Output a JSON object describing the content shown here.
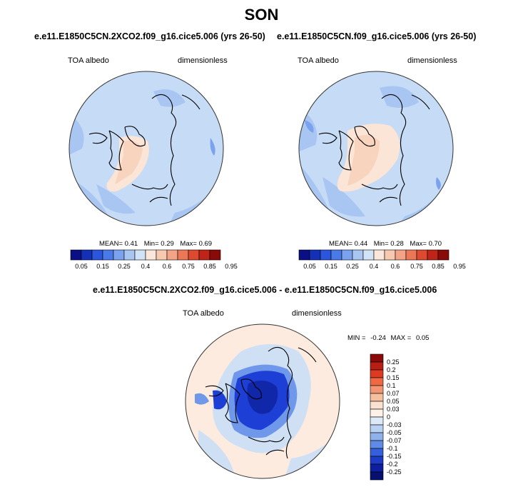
{
  "page": {
    "season": "SON"
  },
  "panels": [
    {
      "title": "e.e11.E1850C5CN.2XCO2.f09_g16.cice5.006 (yrs 26-50)",
      "left_label": "TOA albedo",
      "right_label": "dimensionless",
      "stats": {
        "mean_label": "MEAN=",
        "mean": "0.41",
        "min_label": "Min=",
        "min": "0.29",
        "max_label": "Max=",
        "max": "0.69"
      }
    },
    {
      "title": "e.e11.E1850C5CN.f09_g16.cice5.006 (yrs 26-50)",
      "left_label": "TOA albedo",
      "right_label": "dimensionless",
      "stats": {
        "mean_label": "MEAN=",
        "mean": "0.44",
        "min_label": "Min=",
        "min": "0.28",
        "max_label": "Max=",
        "max": "0.70"
      }
    }
  ],
  "abs_colorbar": {
    "colors": [
      "#0a0f85",
      "#1530b8",
      "#2a55dc",
      "#4a7ae8",
      "#7aa2ee",
      "#a9c6f3",
      "#d2e3f7",
      "#fae6da",
      "#f8c9b1",
      "#f3a486",
      "#ec7756",
      "#dd4a30",
      "#bf2418",
      "#8a0a0a"
    ],
    "labels": [
      "0.05",
      "0.15",
      "0.25",
      "0.4",
      "0.6",
      "0.75",
      "0.85",
      "0.95"
    ]
  },
  "diff_panel": {
    "title": "e.e11.E1850C5CN.2XCO2.f09_g16.cice5.006 - e.e11.E1850C5CN.f09_g16.cice5.006",
    "left_label": "TOA albedo",
    "right_label": "dimensionless",
    "minmax": {
      "min_label": "MIN =",
      "min": "-0.24",
      "max_label": "MAX =",
      "max": "0.05"
    }
  },
  "diff_colorbar": {
    "colors": [
      "#8a0a0a",
      "#b81e14",
      "#dc3a22",
      "#ef6a44",
      "#f39572",
      "#f6bf9e",
      "#fbe2d0",
      "#fdf1e8",
      "#dde9f7",
      "#b8d0f1",
      "#8fb2ec",
      "#5f8ae6",
      "#3460dc",
      "#1d3bc4",
      "#0d1f9e",
      "#06106e"
    ],
    "labels": [
      "0.25",
      "0.2",
      "0.15",
      "0.1",
      "0.07",
      "0.05",
      "0.03",
      "0",
      "-0.03",
      "-0.05",
      "-0.07",
      "-0.1",
      "-0.15",
      "-0.2",
      "-0.25"
    ]
  },
  "map_colors": {
    "ocean_base": "#c6dbf5",
    "ocean_mid": "#a9c6f3",
    "ocean_dark": "#7aa2ee",
    "arctic_warm": "#fbe5d6",
    "arctic_warm2": "#f8d3bd",
    "diff_base": "#fdebdf",
    "diff_light_blue": "#cfe0f5",
    "diff_mid_blue": "#6f98ea",
    "diff_dark_blue": "#1d3fd6",
    "diff_deep_blue": "#0f27a8",
    "coast": "#000000"
  }
}
